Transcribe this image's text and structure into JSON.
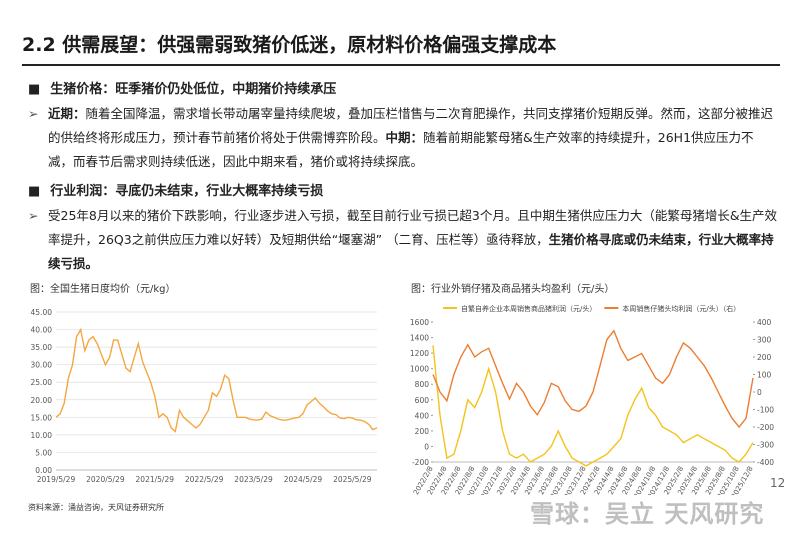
{
  "header": {
    "title": "2.2 供需展望：供强需弱致猪价低迷，原材料价格偏强支撑成本"
  },
  "sections": [
    {
      "heading": "生猪价格：旺季猪价仍处低位，中期猪价持续承压",
      "paragraph": [
        {
          "text": "近期：",
          "bold": true
        },
        {
          "text": "随着全国降温，需求增长带动屠宰量持续爬坡，叠加压栏惜售与二次育肥操作，共同支撑猪价短期反弹。然而，这部分被推迟的供给终将形成压力，预计春节前猪价将处于供需博弈阶段。",
          "bold": false
        },
        {
          "text": "中期：",
          "bold": true
        },
        {
          "text": "随着前期能繁母猪&生产效率的持续提升，26H1供应压力不减，而春节后需求则持续低迷，因此中期来看，猪价或将持续探底。",
          "bold": false
        }
      ]
    },
    {
      "heading": "行业利润：寻底仍未结束，行业大概率持续亏损",
      "paragraph": [
        {
          "text": "受25年8月以来的猪价下跌影响，行业逐步进入亏损，截至目前行业亏损已超3个月。且中期生猪供应压力大（能繁母猪增长&生产效率提升，26Q3之前供应压力难以好转）及短期供给“堰塞湖” （二育、压栏等）亟待释放，",
          "bold": false
        },
        {
          "text": "生猪价格寻底或仍未结束，行业大概率持续亏损。",
          "bold": true
        }
      ]
    }
  ],
  "chart_data": [
    {
      "type": "line",
      "title": "图：全国生猪日度均价（元/kg）",
      "color": "#f4a742",
      "grid": true,
      "categories": [
        "2019/5/29",
        null,
        null,
        null,
        null,
        null,
        null,
        null,
        null,
        null,
        null,
        null,
        "2020/5/29",
        null,
        null,
        null,
        null,
        null,
        null,
        null,
        null,
        null,
        null,
        null,
        "2021/5/29",
        null,
        null,
        null,
        null,
        null,
        null,
        null,
        null,
        null,
        null,
        null,
        "2022/5/29",
        null,
        null,
        null,
        null,
        null,
        null,
        null,
        null,
        null,
        null,
        null,
        "2023/5/29",
        null,
        null,
        null,
        null,
        null,
        null,
        null,
        null,
        null,
        null,
        null,
        "2024/5/29",
        null,
        null,
        null,
        null,
        null,
        null,
        null,
        null,
        null,
        null,
        null,
        "2025/5/29",
        null,
        null,
        null,
        null,
        null,
        null
      ],
      "values": [
        15,
        16,
        19,
        26,
        30,
        38,
        40,
        34,
        37,
        38,
        36,
        33,
        30,
        32,
        37,
        37,
        33,
        29,
        28,
        32,
        36,
        31,
        28,
        25,
        21,
        15,
        16,
        15,
        12,
        11,
        17,
        15,
        14,
        13,
        12,
        13,
        15,
        17,
        22,
        21,
        23,
        27,
        26,
        20,
        15,
        15,
        15,
        14.5,
        14.3,
        14.2,
        14.5,
        16.5,
        15.5,
        15,
        14.5,
        14.2,
        14.2,
        14.5,
        14.8,
        15,
        16,
        18.5,
        19.5,
        20.5,
        19,
        18,
        16.8,
        16,
        15.8,
        14.8,
        14.6,
        15,
        14.8,
        14.3,
        14.2,
        13.8,
        13,
        11.5,
        12
      ],
      "ylim": [
        0,
        45
      ],
      "yticks": [
        {
          "value": 0,
          "label": "0.00"
        },
        {
          "value": 5,
          "label": "5.00"
        },
        {
          "value": 10,
          "label": "10.00"
        },
        {
          "value": 15,
          "label": "15.00"
        },
        {
          "value": 20,
          "label": "20.00"
        },
        {
          "value": 25,
          "label": "25.00"
        },
        {
          "value": 30,
          "label": "30.00"
        },
        {
          "value": 35,
          "label": "35.00"
        },
        {
          "value": 40,
          "label": "40.00"
        },
        {
          "value": 45,
          "label": "45.00"
        }
      ]
    },
    {
      "type": "line",
      "title": "图：行业外销仔猪及商品猪头均盈利（元/头）",
      "grid": false,
      "categories": [
        "2022/2/8",
        null,
        "2022/4/8",
        null,
        "2022/6/8",
        null,
        "2022/8/8",
        null,
        "2022/10/8",
        null,
        "2022/12/8",
        null,
        "2023/2/8",
        null,
        "2023/4/8",
        null,
        "2023/6/8",
        null,
        "2023/8/8",
        null,
        "2023/10/8",
        null,
        "2023/12/8",
        null,
        "2024/2/8",
        null,
        "2024/4/8",
        null,
        "2024/6/8",
        null,
        "2024/8/8",
        null,
        "2024/10/8",
        null,
        "2024/12/8",
        null,
        "2025/2/8",
        null,
        "2025/4/8",
        null,
        "2025/6/8",
        null,
        "2025/8/8",
        null,
        "2025/10/8",
        null,
        "2025/12/8"
      ],
      "series": [
        {
          "name": "自繁自养企业本周销售商品猪利润（元/头）",
          "color": "#f5c21b",
          "values": [
            1300,
            400,
            -150,
            -100,
            200,
            600,
            500,
            700,
            1000,
            700,
            200,
            -100,
            -150,
            -100,
            -200,
            -150,
            -100,
            0,
            200,
            0,
            -150,
            -200,
            -250,
            -200,
            -150,
            -100,
            0,
            100,
            400,
            600,
            750,
            500,
            400,
            250,
            200,
            150,
            50,
            100,
            150,
            100,
            50,
            0,
            -50,
            -150,
            -200,
            -100,
            50
          ]
        },
        {
          "name": "本周销售仔猪头均利润（元/头）（右）",
          "color": "#ed7d31",
          "axis": "y2",
          "values": [
            100,
            0,
            -50,
            100,
            200,
            270,
            200,
            230,
            250,
            150,
            50,
            -40,
            50,
            0,
            -80,
            -130,
            -60,
            50,
            30,
            -50,
            -100,
            -110,
            -80,
            0,
            150,
            300,
            350,
            250,
            180,
            200,
            220,
            150,
            80,
            50,
            100,
            200,
            280,
            250,
            200,
            150,
            80,
            0,
            -80,
            -150,
            -200,
            -150,
            80
          ]
        }
      ],
      "ylim": [
        -200,
        1600
      ],
      "yticks": [
        -200,
        0,
        200,
        400,
        600,
        800,
        1000,
        1200,
        1400,
        1600
      ],
      "y2lim": [
        -400,
        400
      ],
      "y2ticks": [
        -400,
        -300,
        -200,
        -100,
        0,
        100,
        200,
        300,
        400
      ]
    }
  ],
  "footer": {
    "source": "资料来源：涌益咨询，天风证券研究所",
    "page": "12"
  },
  "watermark": "雪球：吴立 天风研究"
}
